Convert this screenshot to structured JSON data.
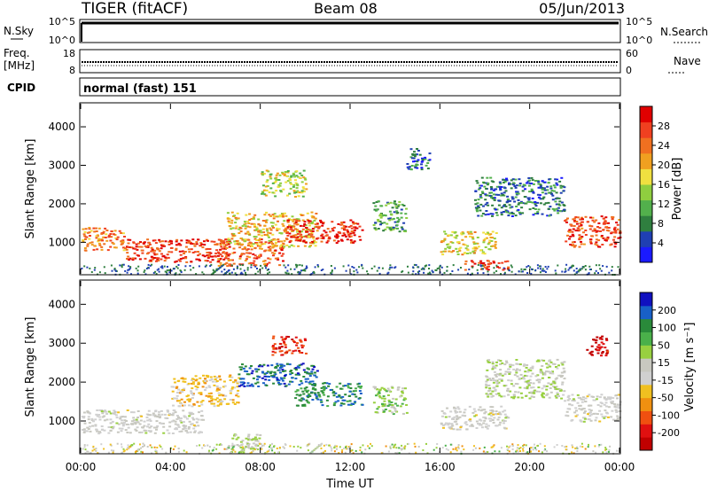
{
  "header": {
    "site": "TIGER (fitACF)",
    "beam": "Beam 08",
    "date": "05/Jun/2013"
  },
  "strips": {
    "nsky": {
      "label": "N.Sky",
      "ticks": [
        "10^5",
        "10^0"
      ]
    },
    "nsearch": {
      "label": "N.Search"
    },
    "freq": {
      "label_line1": "Freq.",
      "label_line2": "[MHz]",
      "ticks": [
        "18",
        "8"
      ],
      "right_ticks": [
        "60",
        "0"
      ]
    },
    "nave": {
      "label": "Nave"
    },
    "cpid": {
      "label": "CPID",
      "value": "normal (fast) 151"
    }
  },
  "colors": {
    "power_scale": [
      "#1a1aff",
      "#1f3fb3",
      "#2f7f3f",
      "#52b04c",
      "#8fce3f",
      "#f0e040",
      "#f0a020",
      "#f07020",
      "#f04020",
      "#e00000"
    ],
    "velocity_scale": [
      "#1010c0",
      "#1860c8",
      "#2a8a3a",
      "#4ab04a",
      "#98d040",
      "#c8c8c0",
      "#d0d0d0",
      "#f0c020",
      "#f09010",
      "#f05010",
      "#e01010",
      "#c00000"
    ]
  },
  "chart_data": [
    {
      "type": "heatmap",
      "name": "power",
      "xlabel": "",
      "ylabel": "Slant Range [km]",
      "x_ticks": [
        "00:00",
        "04:00",
        "08:00",
        "12:00",
        "16:00",
        "20:00",
        "00:00"
      ],
      "y_ticks": [
        "1000",
        "2000",
        "3000",
        "4000"
      ],
      "xlim": [
        0,
        24
      ],
      "ylim": [
        180,
        4600
      ],
      "colorbar": {
        "label": "Power [dB]",
        "ticks": [
          "4",
          "8",
          "12",
          "16",
          "20",
          "24",
          "28"
        ],
        "range": [
          0,
          30
        ]
      },
      "regions": [
        {
          "t": [
            0.0,
            2.0
          ],
          "r": [
            800,
            1400
          ],
          "power": 22
        },
        {
          "t": [
            2.0,
            6.5
          ],
          "r": [
            500,
            1100
          ],
          "power": 26
        },
        {
          "t": [
            6.0,
            9.0
          ],
          "r": [
            400,
            1100
          ],
          "power": 24
        },
        {
          "t": [
            6.5,
            10.5
          ],
          "r": [
            900,
            1800
          ],
          "power": 18
        },
        {
          "t": [
            9.0,
            12.5
          ],
          "r": [
            1000,
            1600
          ],
          "power": 27
        },
        {
          "t": [
            8.0,
            10.0
          ],
          "r": [
            2200,
            2900
          ],
          "power": 15
        },
        {
          "t": [
            13.0,
            14.5
          ],
          "r": [
            1300,
            2100
          ],
          "power": 10
        },
        {
          "t": [
            14.5,
            15.5
          ],
          "r": [
            2900,
            3500
          ],
          "power": 6
        },
        {
          "t": [
            16.0,
            18.5
          ],
          "r": [
            700,
            1300
          ],
          "power": 17
        },
        {
          "t": [
            17.0,
            19.0
          ],
          "r": [
            300,
            550
          ],
          "power": 26
        },
        {
          "t": [
            17.5,
            21.5
          ],
          "r": [
            1700,
            2700
          ],
          "power": 7
        },
        {
          "t": [
            21.5,
            24.0
          ],
          "r": [
            900,
            1700
          ],
          "power": 25
        }
      ]
    },
    {
      "type": "heatmap",
      "name": "velocity",
      "xlabel": "Time UT",
      "ylabel": "Slant Range [km]",
      "x_ticks": [
        "00:00",
        "04:00",
        "08:00",
        "12:00",
        "16:00",
        "20:00",
        "00:00"
      ],
      "y_ticks": [
        "1000",
        "2000",
        "3000",
        "4000"
      ],
      "xlim": [
        0,
        24
      ],
      "ylim": [
        180,
        4600
      ],
      "colorbar": {
        "label": "Velocity [m s⁻¹]",
        "ticks": [
          "200",
          "100",
          "50",
          "15",
          "-15",
          "-50",
          "-100",
          "-200"
        ],
        "range": [
          -250,
          250
        ]
      },
      "regions": [
        {
          "t": [
            0.0,
            5.5
          ],
          "r": [
            700,
            1300
          ],
          "velocity": 0
        },
        {
          "t": [
            4.0,
            7.0
          ],
          "r": [
            1400,
            2200
          ],
          "velocity": -60
        },
        {
          "t": [
            6.5,
            8.0
          ],
          "r": [
            200,
            700
          ],
          "velocity": 40
        },
        {
          "t": [
            7.0,
            10.5
          ],
          "r": [
            1900,
            2500
          ],
          "velocity": 180
        },
        {
          "t": [
            9.5,
            12.5
          ],
          "r": [
            1400,
            2000
          ],
          "velocity": 150
        },
        {
          "t": [
            8.5,
            10.0
          ],
          "r": [
            2700,
            3200
          ],
          "velocity": -180
        },
        {
          "t": [
            13.0,
            14.5
          ],
          "r": [
            1200,
            1900
          ],
          "velocity": 60
        },
        {
          "t": [
            16.0,
            19.0
          ],
          "r": [
            800,
            1400
          ],
          "velocity": 0
        },
        {
          "t": [
            18.0,
            21.5
          ],
          "r": [
            1600,
            2600
          ],
          "velocity": 30
        },
        {
          "t": [
            21.5,
            24.0
          ],
          "r": [
            1000,
            1700
          ],
          "velocity": 0
        },
        {
          "t": [
            22.5,
            23.5
          ],
          "r": [
            2700,
            3200
          ],
          "velocity": -210
        }
      ]
    }
  ]
}
